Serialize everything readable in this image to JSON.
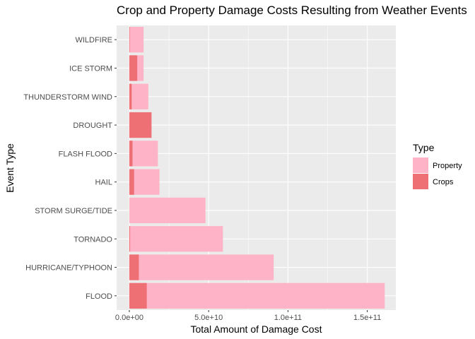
{
  "chart_data": {
    "type": "bar",
    "orientation": "horizontal",
    "stacking": "overlap",
    "title": "Crop and Property Damage Costs Resulting from Weather Events",
    "xlabel": "Total Amount of Damage Cost",
    "ylabel": "Event Type",
    "xlim": [
      -8000000000,
      168000000000
    ],
    "x_ticks": [
      0,
      50000000000,
      100000000000,
      150000000000
    ],
    "x_tick_labels": [
      "0.0e+00",
      "5.0e+10",
      "1.0e+11",
      "1.5e+11"
    ],
    "categories": [
      "FLOOD",
      "HURRICANE/TYPHOON",
      "TORNADO",
      "STORM SURGE/TIDE",
      "HAIL",
      "FLASH FLOOD",
      "DROUGHT",
      "THUNDERSTORM WIND",
      "ICE STORM",
      "WILDFIRE"
    ],
    "series": [
      {
        "name": "Property",
        "color": "#FFB3C6",
        "values": [
          161000000000,
          91000000000,
          59000000000,
          48000000000,
          19000000000,
          18000000000,
          1500000000,
          12000000000,
          9000000000,
          9000000000
        ]
      },
      {
        "name": "Crops",
        "color": "#EE6F74",
        "values": [
          11000000000,
          6000000000,
          500000000,
          0,
          3000000000,
          2000000000,
          14000000000,
          1500000000,
          5000000000,
          300000000
        ]
      }
    ],
    "legend": {
      "title": "Type",
      "position": "right",
      "entries": [
        "Property",
        "Crops"
      ]
    },
    "grid": true,
    "panel_color": "#EBEBEB",
    "grid_color": "#FFFFFF"
  }
}
